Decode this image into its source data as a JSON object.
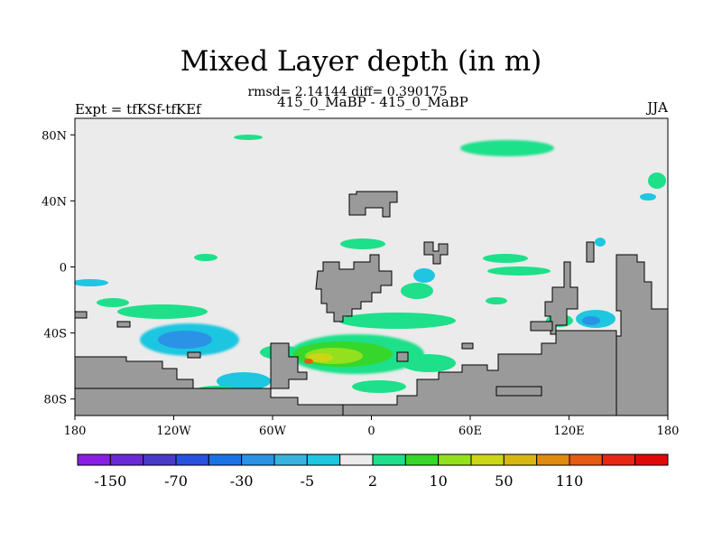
{
  "chart_data": {
    "type": "heatmap",
    "title": "Mixed Layer depth (in m)",
    "stats": "rmsd= 2.14144 diff= 0.390175",
    "subtitle": "415_0_MaBP - 415_0_MaBP",
    "left_label": "Expt = tfKSf-tfKEf",
    "right_label": "JJA",
    "x_ticks": [
      "180",
      "120W",
      "60W",
      "0",
      "60E",
      "120E",
      "180"
    ],
    "x_tick_values": [
      -180,
      -120,
      -60,
      0,
      60,
      120,
      180
    ],
    "y_ticks": [
      "80N",
      "40N",
      "0",
      "40S",
      "80S"
    ],
    "y_tick_values": [
      80,
      40,
      0,
      -40,
      -80
    ],
    "xlim": [
      -180,
      180
    ],
    "ylim": [
      -90,
      90
    ],
    "colorbar": {
      "labels": [
        "-150",
        "-70",
        "-30",
        "-5",
        "2",
        "10",
        "50",
        "110"
      ],
      "colors": [
        "#8a1fe3",
        "#6a2ad6",
        "#4a3ac9",
        "#2851e0",
        "#1a73e6",
        "#2a93e6",
        "#38b3e0",
        "#1ec6e0",
        "#ebebeb",
        "#1ee08a",
        "#37d62a",
        "#93e01e",
        "#cbd716",
        "#d7b714",
        "#e08a10",
        "#e65a14",
        "#e62814",
        "#e00a0a"
      ]
    },
    "land_color": "#9a9a9a",
    "missing_color": "#ebebeb",
    "features": [
      {
        "name": "southern-ocean-anomaly",
        "lon": [
          -55,
          35
        ],
        "lat": [
          -72,
          -42
        ],
        "bin": "2 to 10",
        "peak": 50
      }
    ]
  }
}
